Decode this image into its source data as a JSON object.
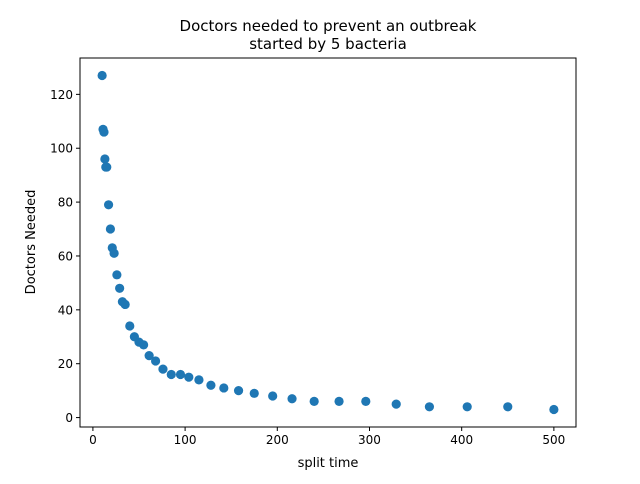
{
  "chart_data": {
    "type": "scatter",
    "title_lines": [
      "Doctors needed to prevent an outbreak",
      "started by 5 bacteria"
    ],
    "xlabel": "split time",
    "ylabel": "Doctors Needed",
    "xlim": [
      -14,
      524
    ],
    "ylim": [
      -3.5,
      133.5
    ],
    "xticks": [
      0,
      100,
      200,
      300,
      400,
      500
    ],
    "yticks": [
      0,
      20,
      40,
      60,
      80,
      100,
      120
    ],
    "grid": false,
    "legend": "none",
    "marker_color": "#1f77b4",
    "points": [
      {
        "x": 10,
        "y": 127
      },
      {
        "x": 11,
        "y": 107
      },
      {
        "x": 12,
        "y": 106
      },
      {
        "x": 13,
        "y": 96
      },
      {
        "x": 14,
        "y": 93
      },
      {
        "x": 15,
        "y": 93
      },
      {
        "x": 17,
        "y": 79
      },
      {
        "x": 19,
        "y": 70
      },
      {
        "x": 21,
        "y": 63
      },
      {
        "x": 23,
        "y": 61
      },
      {
        "x": 26,
        "y": 53
      },
      {
        "x": 29,
        "y": 48
      },
      {
        "x": 32,
        "y": 43
      },
      {
        "x": 35,
        "y": 42
      },
      {
        "x": 40,
        "y": 34
      },
      {
        "x": 45,
        "y": 30
      },
      {
        "x": 50,
        "y": 28
      },
      {
        "x": 55,
        "y": 27
      },
      {
        "x": 61,
        "y": 23
      },
      {
        "x": 68,
        "y": 21
      },
      {
        "x": 76,
        "y": 18
      },
      {
        "x": 85,
        "y": 16
      },
      {
        "x": 95,
        "y": 16
      },
      {
        "x": 104,
        "y": 15
      },
      {
        "x": 115,
        "y": 14
      },
      {
        "x": 128,
        "y": 12
      },
      {
        "x": 142,
        "y": 11
      },
      {
        "x": 158,
        "y": 10
      },
      {
        "x": 175,
        "y": 9
      },
      {
        "x": 195,
        "y": 8
      },
      {
        "x": 216,
        "y": 7
      },
      {
        "x": 240,
        "y": 6
      },
      {
        "x": 267,
        "y": 6
      },
      {
        "x": 296,
        "y": 6
      },
      {
        "x": 329,
        "y": 5
      },
      {
        "x": 365,
        "y": 4
      },
      {
        "x": 406,
        "y": 4
      },
      {
        "x": 450,
        "y": 4
      },
      {
        "x": 500,
        "y": 3
      }
    ]
  }
}
